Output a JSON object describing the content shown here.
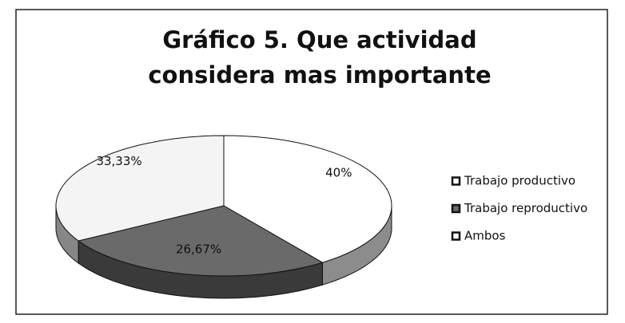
{
  "chart_data": {
    "type": "pie",
    "title": "Gráfico 5. Que actividad considera mas importante",
    "categories": [
      "Trabajo productivo",
      "Trabajo reproductivo",
      "Ambos"
    ],
    "values": [
      40,
      26.67,
      33.33
    ],
    "value_labels": [
      "40%",
      "26,67%",
      "33,33%"
    ],
    "colors": [
      "#ffffff",
      "#6a6a6a",
      "#f4f4f4"
    ],
    "legend": "right"
  }
}
